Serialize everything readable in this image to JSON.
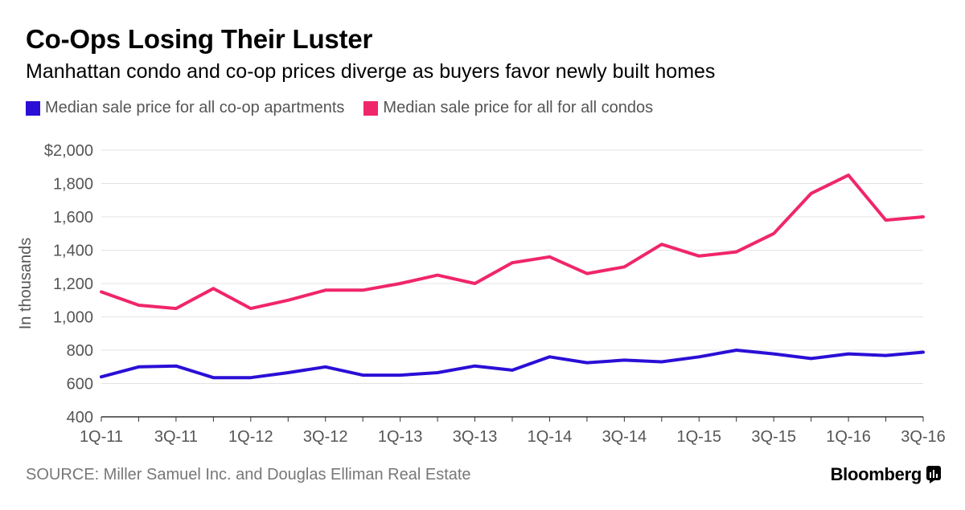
{
  "header": {
    "title": "Co-Ops Losing Their Luster",
    "subtitle": "Manhattan condo and co-op prices diverge as buyers favor newly built homes"
  },
  "legend": [
    {
      "label": "Median sale price for all co-op apartments",
      "color": "#2a0fd6"
    },
    {
      "label": "Median sale price for all for all condos",
      "color": "#f0266a"
    }
  ],
  "footer": {
    "source": "SOURCE: Miller Samuel Inc. and Douglas Elliman Real Estate",
    "brand": "Bloomberg"
  },
  "chart_data": {
    "type": "line",
    "ylabel": "In thousands",
    "ylim": [
      400,
      2000
    ],
    "yticks": [
      400,
      600,
      800,
      1000,
      1200,
      1400,
      1600,
      1800,
      2000
    ],
    "ytick_labels": [
      "400",
      "600",
      "800",
      "1,000",
      "1,200",
      "1,400",
      "1,600",
      "1,800",
      "$2,000"
    ],
    "x": [
      "1Q-11",
      "2Q-11",
      "3Q-11",
      "4Q-11",
      "1Q-12",
      "2Q-12",
      "3Q-12",
      "4Q-12",
      "1Q-13",
      "2Q-13",
      "3Q-13",
      "4Q-13",
      "1Q-14",
      "2Q-14",
      "3Q-14",
      "4Q-14",
      "1Q-15",
      "2Q-15",
      "3Q-15",
      "4Q-15",
      "1Q-16",
      "2Q-16",
      "3Q-16"
    ],
    "xtick_labels": [
      "1Q-11",
      "3Q-11",
      "1Q-12",
      "3Q-12",
      "1Q-13",
      "3Q-13",
      "1Q-14",
      "3Q-14",
      "1Q-15",
      "3Q-15",
      "1Q-16",
      "3Q-16"
    ],
    "grid": true,
    "series": [
      {
        "name": "Median sale price for all co-op apartments",
        "color": "#2a0fd6",
        "values": [
          640,
          700,
          705,
          635,
          635,
          665,
          700,
          650,
          650,
          665,
          705,
          680,
          760,
          725,
          740,
          730,
          760,
          800,
          778,
          750,
          778,
          768,
          788
        ]
      },
      {
        "name": "Median sale price for all for all condos",
        "color": "#f0266a",
        "values": [
          1150,
          1070,
          1050,
          1170,
          1050,
          1100,
          1160,
          1160,
          1200,
          1250,
          1200,
          1325,
          1360,
          1260,
          1300,
          1435,
          1365,
          1390,
          1500,
          1740,
          1850,
          1580,
          1600
        ]
      }
    ]
  }
}
